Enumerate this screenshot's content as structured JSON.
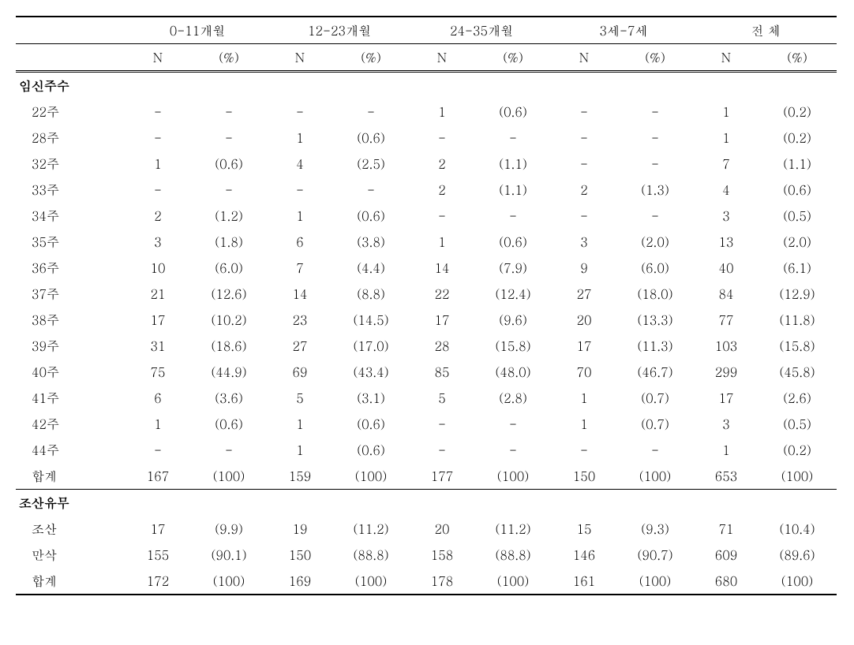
{
  "headers": {
    "groups": [
      "0-11개월",
      "12-23개월",
      "24-35개월",
      "3세-7세",
      "전 체"
    ],
    "sub": [
      "N",
      "(%)"
    ]
  },
  "sections": [
    {
      "title": "임신주수",
      "rows": [
        {
          "label": "22주",
          "cells": [
            "-",
            "-",
            "-",
            "-",
            "1",
            "(0.6)",
            "-",
            "-",
            "1",
            "(0.2)"
          ]
        },
        {
          "label": "28주",
          "cells": [
            "-",
            "-",
            "1",
            "(0.6)",
            "-",
            "-",
            "-",
            "-",
            "1",
            "(0.2)"
          ]
        },
        {
          "label": "32주",
          "cells": [
            "1",
            "(0.6)",
            "4",
            "(2.5)",
            "2",
            "(1.1)",
            "-",
            "-",
            "7",
            "(1.1)"
          ]
        },
        {
          "label": "33주",
          "cells": [
            "-",
            "-",
            "-",
            "-",
            "2",
            "(1.1)",
            "2",
            "(1.3)",
            "4",
            "(0.6)"
          ]
        },
        {
          "label": "34주",
          "cells": [
            "2",
            "(1.2)",
            "1",
            "(0.6)",
            "-",
            "-",
            "-",
            "-",
            "3",
            "(0.5)"
          ]
        },
        {
          "label": "35주",
          "cells": [
            "3",
            "(1.8)",
            "6",
            "(3.8)",
            "1",
            "(0.6)",
            "3",
            "(2.0)",
            "13",
            "(2.0)"
          ]
        },
        {
          "label": "36주",
          "cells": [
            "10",
            "(6.0)",
            "7",
            "(4.4)",
            "14",
            "(7.9)",
            "9",
            "(6.0)",
            "40",
            "(6.1)"
          ]
        },
        {
          "label": "37주",
          "cells": [
            "21",
            "(12.6)",
            "14",
            "(8.8)",
            "22",
            "(12.4)",
            "27",
            "(18.0)",
            "84",
            "(12.9)"
          ]
        },
        {
          "label": "38주",
          "cells": [
            "17",
            "(10.2)",
            "23",
            "(14.5)",
            "17",
            "(9.6)",
            "20",
            "(13.3)",
            "77",
            "(11.8)"
          ]
        },
        {
          "label": "39주",
          "cells": [
            "31",
            "(18.6)",
            "27",
            "(17.0)",
            "28",
            "(15.8)",
            "17",
            "(11.3)",
            "103",
            "(15.8)"
          ]
        },
        {
          "label": "40주",
          "cells": [
            "75",
            "(44.9)",
            "69",
            "(43.4)",
            "85",
            "(48.0)",
            "70",
            "(46.7)",
            "299",
            "(45.8)"
          ]
        },
        {
          "label": "41주",
          "cells": [
            "6",
            "(3.6)",
            "5",
            "(3.1)",
            "5",
            "(2.8)",
            "1",
            "(0.7)",
            "17",
            "(2.6)"
          ]
        },
        {
          "label": "42주",
          "cells": [
            "1",
            "(0.6)",
            "1",
            "(0.6)",
            "-",
            "-",
            "1",
            "(0.7)",
            "3",
            "(0.5)"
          ]
        },
        {
          "label": "44주",
          "cells": [
            "-",
            "-",
            "1",
            "(0.6)",
            "-",
            "-",
            "-",
            "-",
            "1",
            "(0.2)"
          ]
        },
        {
          "label": "합계",
          "cells": [
            "167",
            "(100)",
            "159",
            "(100)",
            "177",
            "(100)",
            "150",
            "(100)",
            "653",
            "(100)"
          ]
        }
      ]
    },
    {
      "title": "조산유무",
      "rows": [
        {
          "label": "조산",
          "cells": [
            "17",
            "(9.9)",
            "19",
            "(11.2)",
            "20",
            "(11.2)",
            "15",
            "(9.3)",
            "71",
            "(10.4)"
          ]
        },
        {
          "label": "만삭",
          "cells": [
            "155",
            "(90.1)",
            "150",
            "(88.8)",
            "158",
            "(88.8)",
            "146",
            "(90.7)",
            "609",
            "(89.6)"
          ]
        },
        {
          "label": "합계",
          "cells": [
            "172",
            "(100)",
            "169",
            "(100)",
            "178",
            "(100)",
            "161",
            "(100)",
            "680",
            "(100)"
          ]
        }
      ]
    }
  ]
}
